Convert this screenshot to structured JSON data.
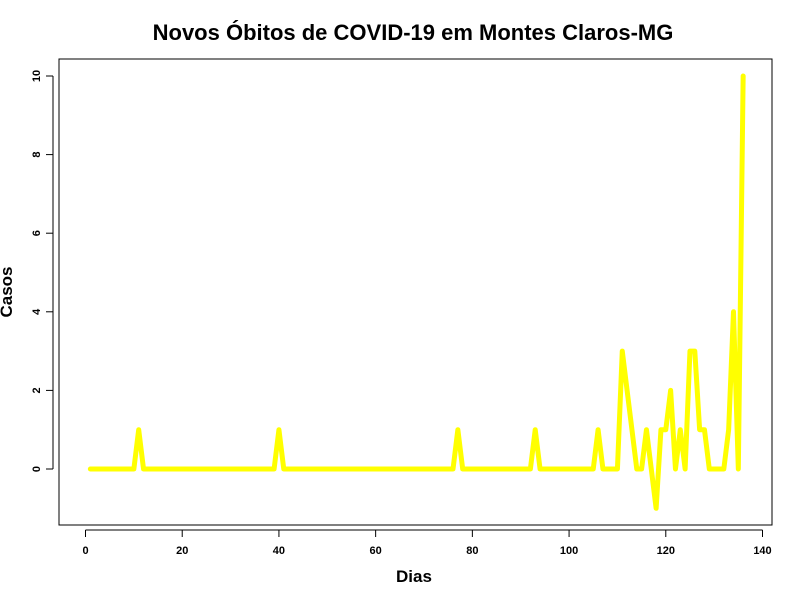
{
  "chart_data": {
    "type": "line",
    "title": "Novos Óbitos de COVID-19 em Montes Claros-MG",
    "xlabel": "Dias",
    "ylabel": "Casos",
    "xlim": [
      1,
      136
    ],
    "ylim": [
      -1,
      10
    ],
    "xticks": [
      0,
      20,
      40,
      60,
      80,
      100,
      120,
      140
    ],
    "yticks": [
      0,
      2,
      4,
      6,
      8,
      10
    ],
    "series": [
      {
        "color": "#ffff00",
        "x": [
          1,
          2,
          3,
          4,
          5,
          6,
          7,
          8,
          9,
          10,
          11,
          12,
          13,
          14,
          15,
          16,
          17,
          18,
          19,
          20,
          21,
          22,
          23,
          24,
          25,
          26,
          27,
          28,
          29,
          30,
          31,
          32,
          33,
          34,
          35,
          36,
          37,
          38,
          39,
          40,
          41,
          42,
          43,
          44,
          45,
          46,
          47,
          48,
          49,
          50,
          51,
          52,
          53,
          54,
          55,
          56,
          57,
          58,
          59,
          60,
          61,
          62,
          63,
          64,
          65,
          66,
          67,
          68,
          69,
          70,
          71,
          72,
          73,
          74,
          75,
          76,
          77,
          78,
          79,
          80,
          81,
          82,
          83,
          84,
          85,
          86,
          87,
          88,
          89,
          90,
          91,
          92,
          93,
          94,
          95,
          96,
          97,
          98,
          99,
          100,
          101,
          102,
          103,
          104,
          105,
          106,
          107,
          108,
          109,
          110,
          111,
          112,
          113,
          114,
          115,
          116,
          117,
          118,
          119,
          120,
          121,
          122,
          123,
          124,
          125,
          126,
          127,
          128,
          129,
          130,
          131,
          132,
          133,
          134,
          135,
          136
        ],
        "y": [
          0,
          0,
          0,
          0,
          0,
          0,
          0,
          0,
          0,
          0,
          1,
          0,
          0,
          0,
          0,
          0,
          0,
          0,
          0,
          0,
          0,
          0,
          0,
          0,
          0,
          0,
          0,
          0,
          0,
          0,
          0,
          0,
          0,
          0,
          0,
          0,
          0,
          0,
          0,
          1,
          0,
          0,
          0,
          0,
          0,
          0,
          0,
          0,
          0,
          0,
          0,
          0,
          0,
          0,
          0,
          0,
          0,
          0,
          0,
          0,
          0,
          0,
          0,
          0,
          0,
          0,
          0,
          0,
          0,
          0,
          0,
          0,
          0,
          0,
          0,
          0,
          1,
          0,
          0,
          0,
          0,
          0,
          0,
          0,
          0,
          0,
          0,
          0,
          0,
          0,
          0,
          0,
          1,
          0,
          0,
          0,
          0,
          0,
          0,
          0,
          0,
          0,
          0,
          0,
          0,
          1,
          0,
          0,
          0,
          0,
          3,
          2,
          1,
          0,
          0,
          1,
          0,
          -1,
          1,
          1,
          2,
          0,
          1,
          0,
          3,
          3,
          1,
          1,
          0,
          0,
          0,
          0,
          1,
          4,
          0,
          10
        ]
      }
    ]
  }
}
